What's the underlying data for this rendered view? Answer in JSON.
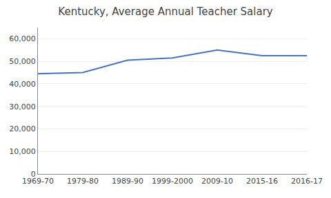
{
  "chart_data": {
    "type": "line",
    "title": "Kentucky, Average Annual Teacher Salary",
    "categories": [
      "1969-70",
      "1979-80",
      "1989-90",
      "1999-2000",
      "2009-10",
      "2015-16",
      "2016-17"
    ],
    "values": [
      44500,
      45000,
      50500,
      51500,
      55000,
      52500,
      52500
    ],
    "color": "#4472c4",
    "ylim": [
      0,
      65000
    ],
    "yticks": [
      0,
      {
        "value": 10000,
        "label": "10,000"
      },
      {
        "value": 20000,
        "label": "20,000"
      },
      {
        "value": 30000,
        "label": "30,000"
      },
      {
        "value": 40000,
        "label": "40,000"
      },
      {
        "value": 50000,
        "label": "50,000"
      },
      {
        "value": 60000,
        "label": "60,000"
      }
    ],
    "grid": true
  }
}
